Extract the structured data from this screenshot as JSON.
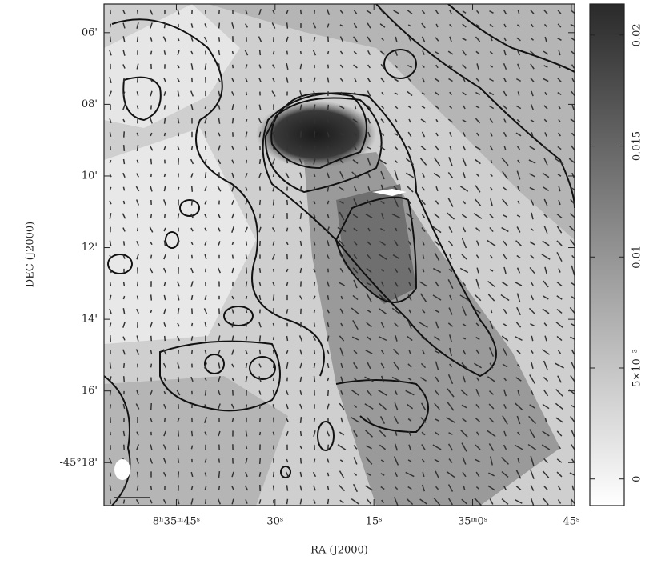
{
  "chart_data": {
    "type": "map",
    "xlabel": "RA (J2000)",
    "ylabel": "DEC (J2000)",
    "xlim": [
      56,
      -15.5
    ],
    "xticks": [
      {
        "value": 45,
        "label": "8ʰ35ᵐ45ˢ"
      },
      {
        "value": 30,
        "label": "30ˢ"
      },
      {
        "value": 15,
        "label": "15ˢ"
      },
      {
        "value": 0,
        "label": "35ᵐ0ˢ"
      },
      {
        "value": -15,
        "label": "45ˢ"
      }
    ],
    "ylim": [
      -19.2,
      -5.2
    ],
    "yticks": [
      {
        "value": -6,
        "label": "06'"
      },
      {
        "value": -8,
        "label": "08'"
      },
      {
        "value": -10,
        "label": "10'"
      },
      {
        "value": -12,
        "label": "12'"
      },
      {
        "value": -14,
        "label": "14'"
      },
      {
        "value": -16,
        "label": "16'"
      },
      {
        "value": -18,
        "label": "-45°18'"
      }
    ],
    "colorbar": {
      "clim": [
        -0.0012,
        0.0214
      ],
      "colors": [
        "#ffffff",
        "#2a2a2a"
      ],
      "ticks": [
        0,
        {
          "value": 0.005,
          "label": "5×10⁻³"
        },
        0.01,
        0.015,
        0.02
      ]
    }
  }
}
